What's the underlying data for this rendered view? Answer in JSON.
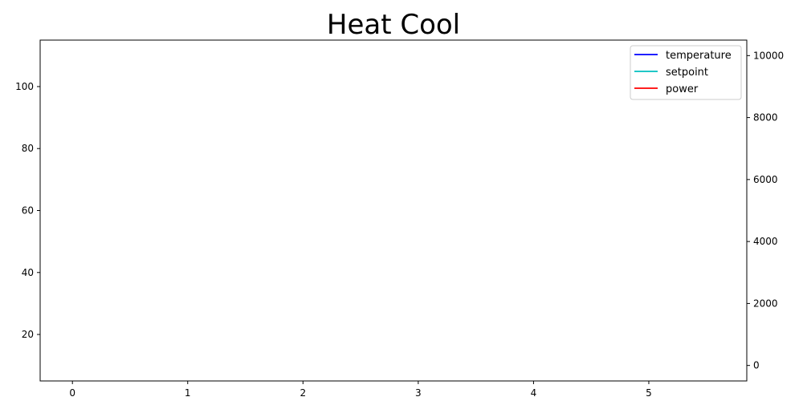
{
  "chart_data": {
    "type": "line",
    "title": "Heat Cool",
    "xlabel": "",
    "ylabel": "",
    "y2label": "",
    "xlim": [
      -0.28,
      5.85
    ],
    "ylim": [
      5,
      115
    ],
    "y2lim": [
      -500,
      10500
    ],
    "x_ticks": [
      0,
      1,
      2,
      3,
      4,
      5
    ],
    "y_ticks": [
      20,
      40,
      60,
      80,
      100
    ],
    "y2_ticks": [
      0,
      2000,
      4000,
      6000,
      8000,
      10000
    ],
    "grid": false,
    "legend_position": "top-right",
    "series": [
      {
        "name": "temperature",
        "color": "#0000ff",
        "axis": "left",
        "x": [],
        "values": []
      },
      {
        "name": "setpoint",
        "color": "#00bfbf",
        "axis": "left",
        "x": [],
        "values": []
      },
      {
        "name": "power",
        "color": "#ff0000",
        "axis": "right",
        "x": [],
        "values": []
      }
    ]
  }
}
